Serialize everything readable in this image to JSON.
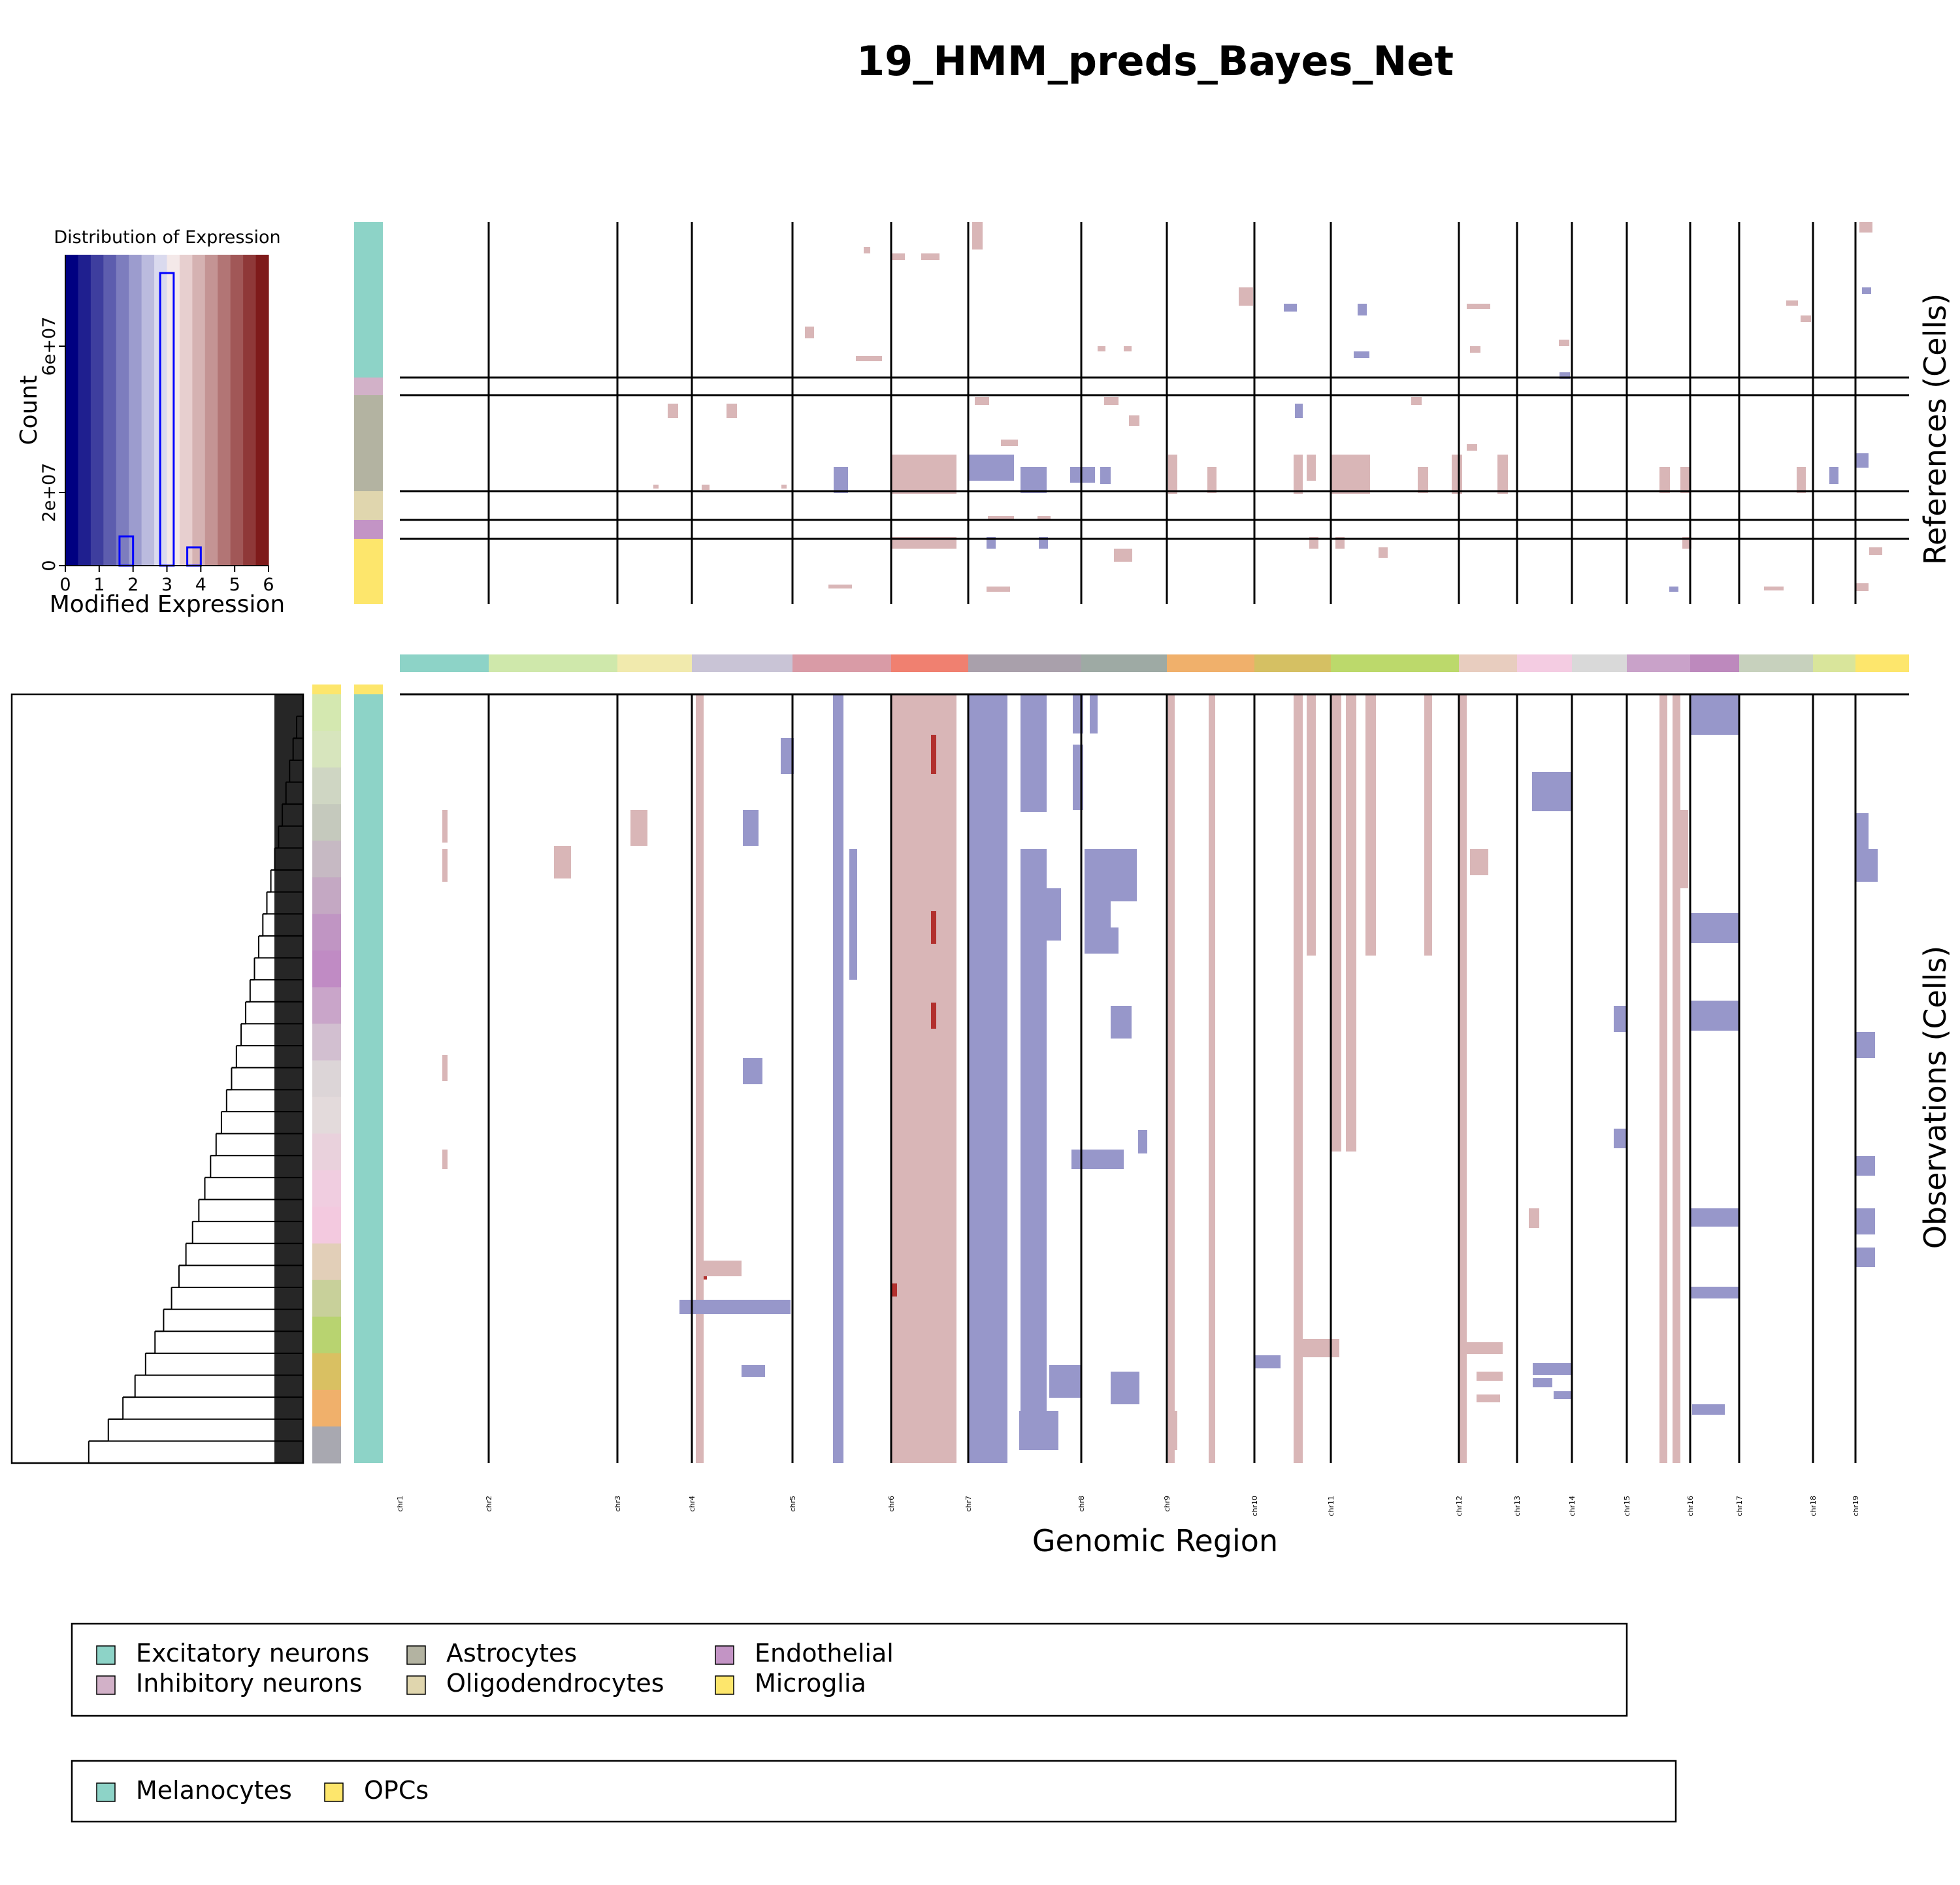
{
  "title": "19_HMM_preds_Bayes_Net",
  "colors": {
    "gain": "#d9b6b7",
    "strong_gain": "#b2302e",
    "loss": "#9797ca",
    "line": "#000000",
    "colorbar": [
      "#000081",
      "#1f1f8f",
      "#3e3e9e",
      "#5d5dae",
      "#7d7dbe",
      "#9c9cce",
      "#bbbbde",
      "#dadaee",
      "#f4e9e9",
      "#e7cfcf",
      "#d5b2b2",
      "#c49494",
      "#b27575",
      "#a15757",
      "#8f3838",
      "#7e1a1a"
    ]
  },
  "chromosomes": [
    {
      "name": "chr1",
      "color": "#8dd3c7"
    },
    {
      "name": "chr2",
      "color": "#cfe8ab"
    },
    {
      "name": "chr3",
      "color": "#f1eaad"
    },
    {
      "name": "chr4",
      "color": "#c9c4d6"
    },
    {
      "name": "chr5",
      "color": "#d99ba6"
    },
    {
      "name": "chr6",
      "color": "#f08070"
    },
    {
      "name": "chr7",
      "color": "#a9a0ab"
    },
    {
      "name": "chr8",
      "color": "#9eaaa4"
    },
    {
      "name": "chr9",
      "color": "#f0b06b"
    },
    {
      "name": "chr10",
      "color": "#d5c063"
    },
    {
      "name": "chr11",
      "color": "#bcd96b"
    },
    {
      "name": "chr12",
      "color": "#e8cdbf"
    },
    {
      "name": "chr13",
      "color": "#f4cce2"
    },
    {
      "name": "chr14",
      "color": "#d9d9d9"
    },
    {
      "name": "chr15",
      "color": "#c9a2c9"
    },
    {
      "name": "chr16",
      "color": "#bd89bd"
    },
    {
      "name": "chr17",
      "color": "#c7d1bd"
    },
    {
      "name": "chr18",
      "color": "#d9e59b"
    },
    {
      "name": "chr19",
      "color": "#fde66c"
    }
  ],
  "references": {
    "ylabel": "References (Cells)",
    "groups": [
      {
        "name": "Excitatory neurons",
        "color": "#8dd3c7"
      },
      {
        "name": "Inhibitory neurons",
        "color": "#d2b1c8"
      },
      {
        "name": "Astrocytes",
        "color": "#b3b3a1"
      },
      {
        "name": "Oligodendrocytes",
        "color": "#e0d6ae"
      },
      {
        "name": "Endothelial",
        "color": "#c394c5"
      },
      {
        "name": "Microglia",
        "color": "#fde66c"
      }
    ]
  },
  "observations": {
    "ylabel": "Observations (Cells)",
    "groups": [
      {
        "name": "Melanocytes",
        "color": "#8dd3c7"
      },
      {
        "name": "OPCs",
        "color": "#fde66c"
      }
    ]
  },
  "chart_data": [
    {
      "type": "heatmap",
      "title": "19_HMM_preds_Bayes_Net",
      "xlabel": "Genomic Region",
      "x_categories": [
        "chr1",
        "chr2",
        "chr3",
        "chr4",
        "chr5",
        "chr6",
        "chr7",
        "chr8",
        "chr9",
        "chr10",
        "chr11",
        "chr12",
        "chr13",
        "chr14",
        "chr15",
        "chr16",
        "chr17",
        "chr18",
        "chr19"
      ],
      "row_panels": [
        "References (Cells)",
        "Observations (Cells)"
      ],
      "value_colors": {
        "loss": "#9797ca",
        "neutral": "#ffffff",
        "gain": "#d9b6b7"
      },
      "legend": [
        {
          "position": "bottom",
          "entries": [
            "Excitatory neurons",
            "Inhibitory neurons",
            "Astrocytes",
            "Oligodendrocytes",
            "Endothelial",
            "Microglia"
          ]
        },
        {
          "position": "bottom",
          "entries": [
            "Melanocytes",
            "OPCs"
          ]
        }
      ]
    },
    {
      "type": "bar",
      "title": "Distribution of Expression",
      "xlabel": "Modified Expression",
      "ylabel": "Count",
      "x_ticks": [
        "0",
        "1",
        "2",
        "3",
        "4",
        "5",
        "6"
      ],
      "y_ticks": [
        "0",
        "2e+07",
        "6e+07"
      ],
      "xlim": [
        0,
        6
      ],
      "ylim": [
        0,
        85000000
      ],
      "bins": [
        {
          "x0": 1.6,
          "x1": 2.0,
          "value": 8000000
        },
        {
          "x0": 2.8,
          "x1": 3.2,
          "value": 80000000
        },
        {
          "x0": 3.6,
          "x1": 4.0,
          "value": 5000000
        }
      ]
    }
  ]
}
